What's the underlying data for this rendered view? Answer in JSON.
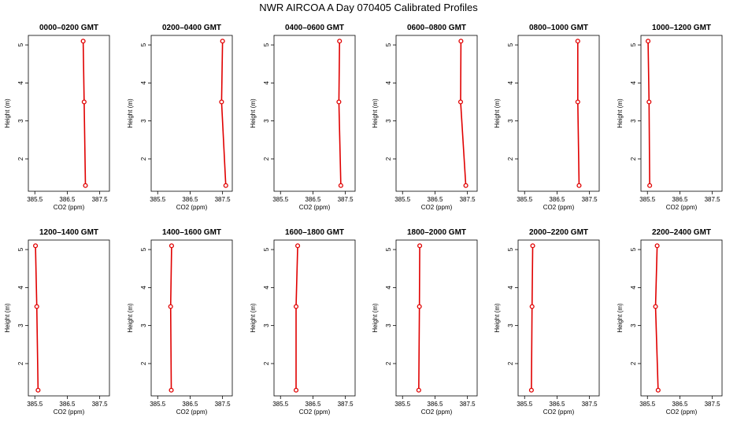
{
  "title": "NWR AIRCOA A  Day 070405  Calibrated Profiles",
  "chart_data": {
    "type": "line",
    "xlabel": "CO2 (ppm)",
    "ylabel": "Height (m)",
    "xlim": [
      385.3,
      387.8
    ],
    "ylim": [
      1.15,
      5.25
    ],
    "xticks": [
      385.5,
      386.5,
      387.5
    ],
    "xtick_labels": [
      "385.5",
      "386.5",
      "387.5"
    ],
    "yticks": [
      2,
      3,
      4,
      5
    ],
    "ytick_labels": [
      "2",
      "3",
      "4",
      "5"
    ],
    "heights": [
      5.1,
      3.5,
      1.3
    ],
    "series_color": "#e00000",
    "panels": [
      {
        "title": "0000–0200 GMT",
        "co2": [
          386.99,
          387.02,
          387.06
        ]
      },
      {
        "title": "0200–0400 GMT",
        "co2": [
          387.5,
          387.47,
          387.6
        ]
      },
      {
        "title": "0400–0600 GMT",
        "co2": [
          387.32,
          387.3,
          387.36
        ]
      },
      {
        "title": "0600–0800 GMT",
        "co2": [
          387.3,
          387.29,
          387.45
        ]
      },
      {
        "title": "0800–1000 GMT",
        "co2": [
          387.14,
          387.14,
          387.18
        ]
      },
      {
        "title": "1000–1200 GMT",
        "co2": [
          385.52,
          385.55,
          385.57
        ]
      },
      {
        "title": "1200–1400 GMT",
        "co2": [
          385.52,
          385.56,
          385.6
        ]
      },
      {
        "title": "1400–1600 GMT",
        "co2": [
          385.93,
          385.9,
          385.92
        ]
      },
      {
        "title": "1600–1800 GMT",
        "co2": [
          386.03,
          385.98,
          385.98
        ]
      },
      {
        "title": "1800–2000 GMT",
        "co2": [
          386.03,
          386.02,
          386.0
        ]
      },
      {
        "title": "2000–2200 GMT",
        "co2": [
          385.75,
          385.73,
          385.71
        ]
      },
      {
        "title": "2200–2400 GMT",
        "co2": [
          385.8,
          385.75,
          385.83
        ]
      }
    ]
  }
}
